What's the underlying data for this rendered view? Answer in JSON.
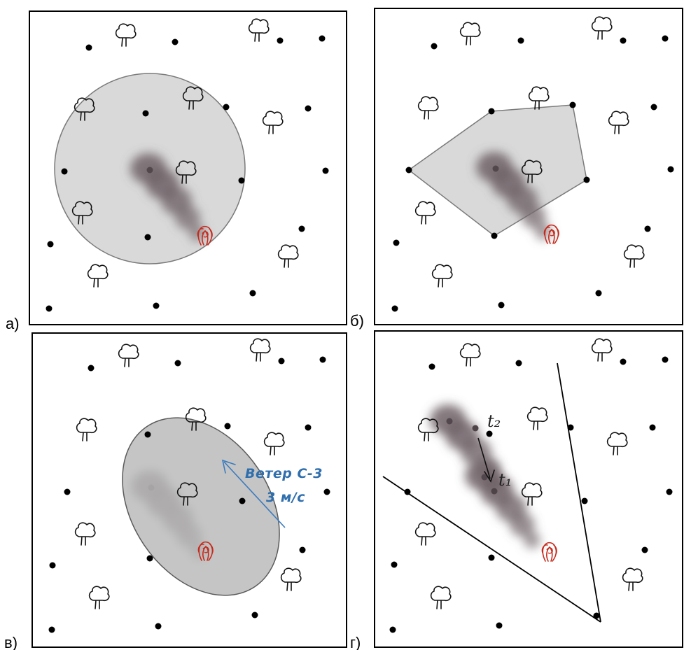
{
  "figure": {
    "panels": [
      {
        "id": "a",
        "label": "а)",
        "boundary": "circle"
      },
      {
        "id": "b",
        "label": "б)",
        "boundary": "polygon"
      },
      {
        "id": "v",
        "label": "в)",
        "boundary": "ellipse",
        "wind_label_line1": "Ветер С-3",
        "wind_label_line2": "3 м/с"
      },
      {
        "id": "g",
        "label": "г)",
        "boundary": "sector",
        "time_label_1": "t₂",
        "time_label_2": "t₁"
      }
    ],
    "icons": [
      "tree-icon",
      "sensor-dot-icon",
      "fire-source-icon",
      "smoke-plume"
    ],
    "colors": {
      "frame": "#000000",
      "region_fill": "#d9d9d9",
      "region_stroke": "#7a7a7a",
      "ellipse_fill": "#b8b8b8",
      "smoke": "#6e6266",
      "fire": "#c62a1c",
      "wind_arrow": "#3a7bbf",
      "sensor": "#000000"
    }
  }
}
